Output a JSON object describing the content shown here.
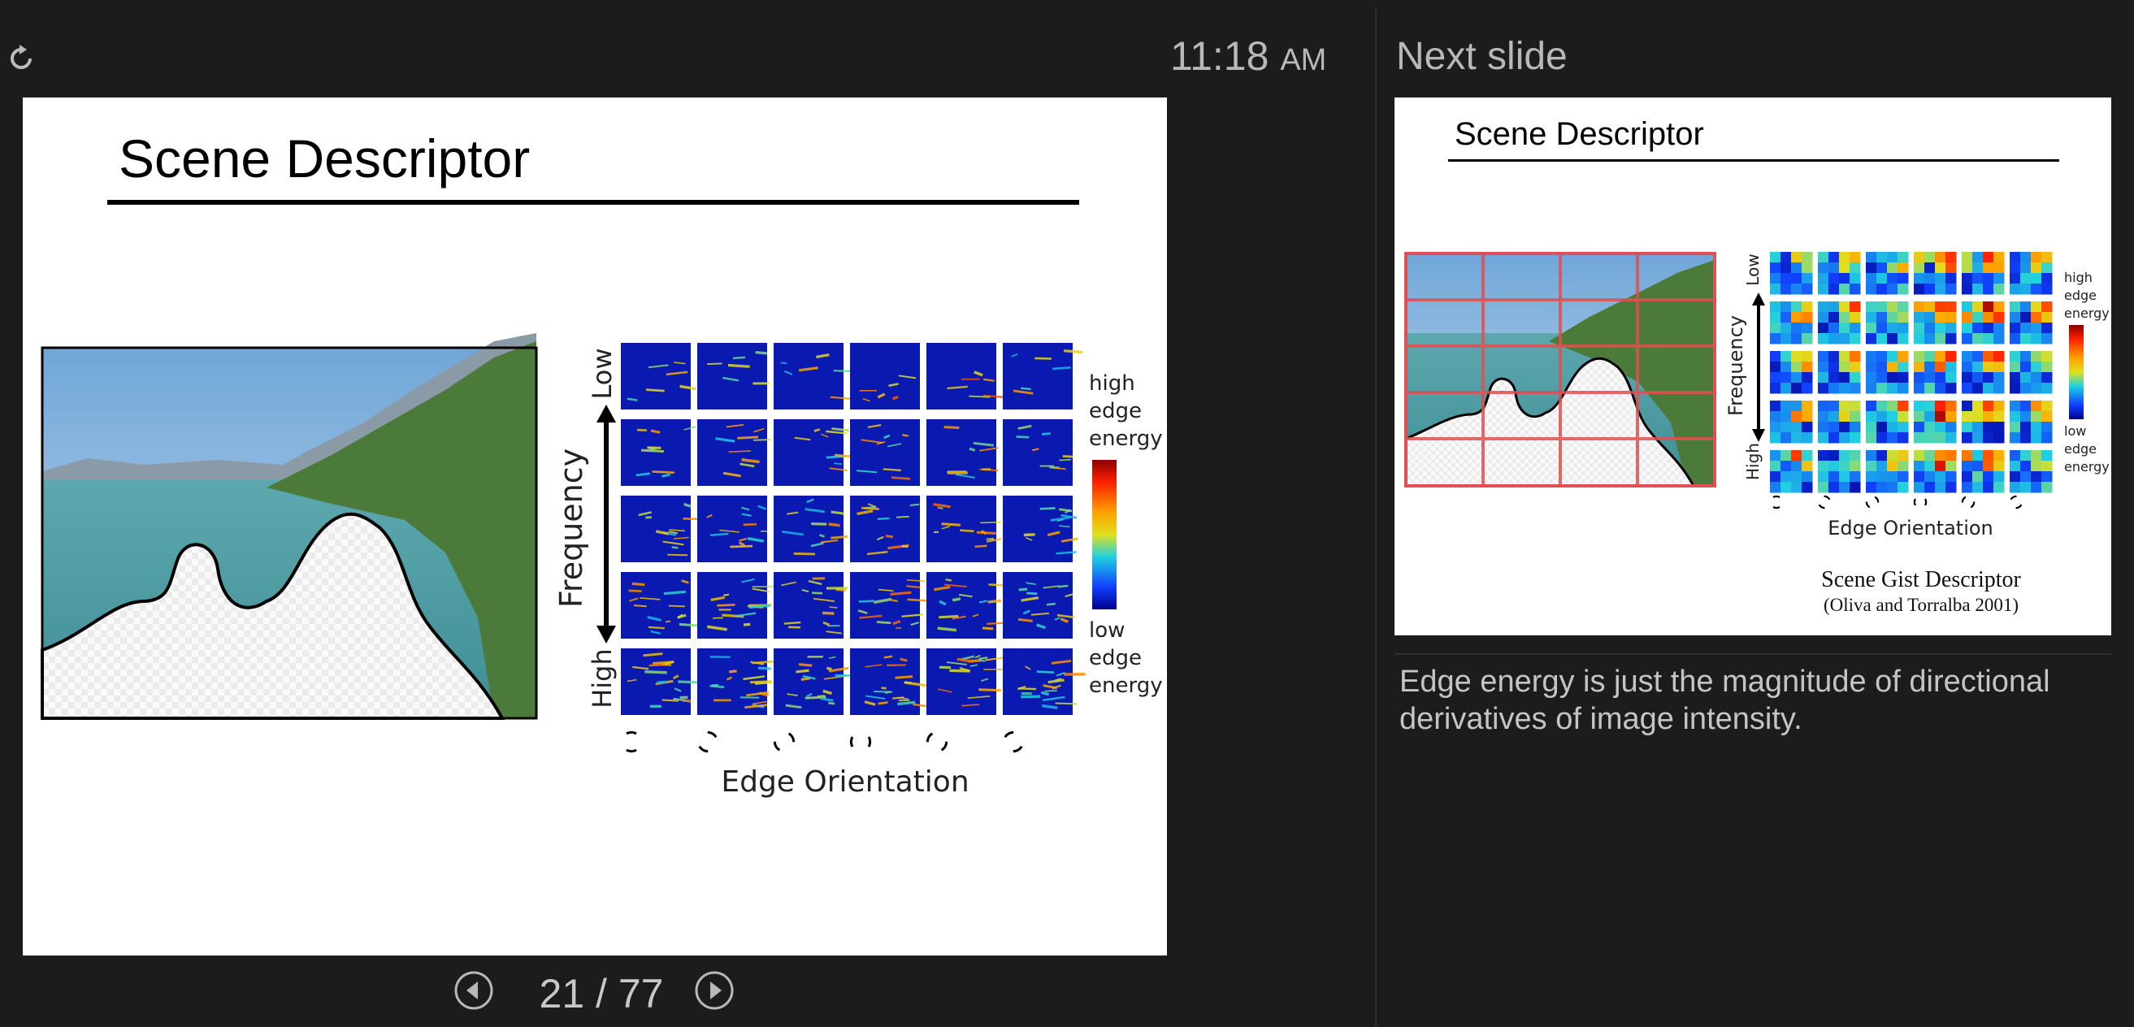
{
  "clock": {
    "time": "11:18",
    "ampm": "AM"
  },
  "next_slide_header": "Next slide",
  "current_slide": {
    "title": "Scene Descriptor",
    "y_axis": {
      "label": "Frequency",
      "top": "Low",
      "bottom": "High"
    },
    "x_axis_label": "Edge Orientation",
    "legend": {
      "high": [
        "high",
        "edge",
        "energy"
      ],
      "low": [
        "low",
        "edge",
        "energy"
      ]
    }
  },
  "next_slide": {
    "title": "Scene Descriptor",
    "y_axis": {
      "label": "Frequency",
      "top": "Low",
      "bottom": "High"
    },
    "x_axis_label": "Edge Orientation",
    "legend": {
      "high": [
        "high",
        "edge",
        "energy"
      ],
      "low": [
        "low",
        "edge",
        "energy"
      ]
    },
    "caption": "Scene Gist Descriptor",
    "citation": "(Oliva and Torralba 2001)"
  },
  "navigation": {
    "current_page": 21,
    "total_pages": 77,
    "counter_text": "21 / 77"
  },
  "speaker_notes": "Edge energy is just the magnitude of directional derivatives of image intensity.",
  "colors": {
    "background": "#1c1c1c",
    "heatmap_low": "#0018a8",
    "heatmap_high": "#d40000",
    "grid_overlay": "#e05050"
  },
  "icons": {
    "reset": "reset-icon",
    "prev": "prev-circle-icon",
    "next": "next-circle-icon"
  }
}
